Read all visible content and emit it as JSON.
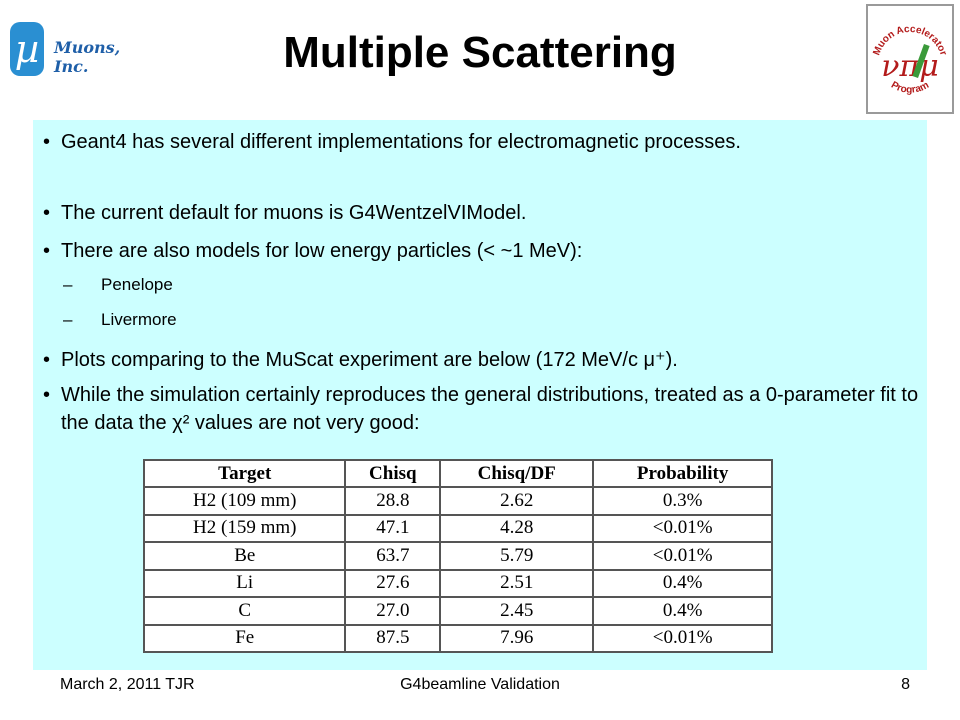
{
  "header": {
    "title": "Multiple Scattering",
    "logo_left": {
      "symbol": "µ",
      "text": "Muons, Inc.",
      "badge_color": "#2a8fd2"
    },
    "logo_right": {
      "top_text": "Muon Accelerator",
      "bottom_text": "Program",
      "symbols": "νπμ"
    }
  },
  "bullets": [
    {
      "level": 1,
      "text": "Geant4 has several different implementations for electromagnetic processes."
    },
    {
      "level": 1,
      "text": "The current default for muons is G4WentzelVIModel."
    },
    {
      "level": 1,
      "text": "There are also models for low energy particles (< ~1 MeV):"
    },
    {
      "level": 2,
      "text": "Penelope"
    },
    {
      "level": 2,
      "text": "Livermore"
    },
    {
      "level": 1,
      "text": "Plots comparing to the MuScat experiment are below (172 MeV/c μ⁺)."
    },
    {
      "level": 1,
      "text": "While the simulation certainly reproduces the general distributions, treated as a 0-parameter fit to the data the χ² values are not very good:"
    }
  ],
  "table": {
    "headers": [
      "Target",
      "Chisq",
      "Chisq/DF",
      "Probability"
    ],
    "rows": [
      [
        "H2 (109 mm)",
        "28.8",
        "2.62",
        "0.3%"
      ],
      [
        "H2 (159 mm)",
        "47.1",
        "4.28",
        "<0.01%"
      ],
      [
        "Be",
        "63.7",
        "5.79",
        "<0.01%"
      ],
      [
        "Li",
        "27.6",
        "2.51",
        "0.4%"
      ],
      [
        "C",
        "27.0",
        "2.45",
        "0.4%"
      ],
      [
        "Fe",
        "87.5",
        "7.96",
        "<0.01%"
      ]
    ]
  },
  "footer": {
    "date": "March 2, 2011  TJR",
    "center": "G4beamline Validation",
    "page": "8"
  },
  "colors": {
    "content_bg": "#ccffff",
    "table_border": "#555555"
  }
}
